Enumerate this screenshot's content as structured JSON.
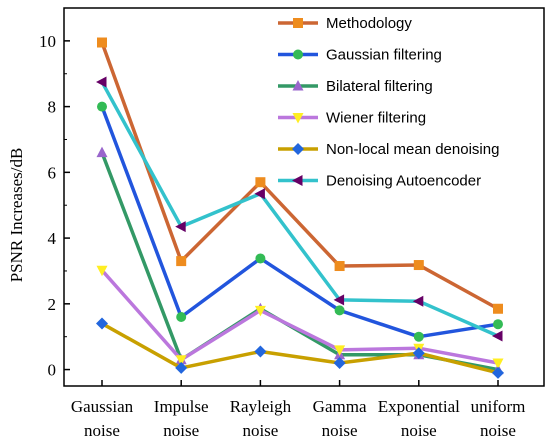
{
  "chart_data": {
    "type": "line",
    "title": "",
    "ylabel": "PSNR Increases/dB",
    "xlabel": "",
    "ylim": [
      -0.5,
      11
    ],
    "yticks": [
      0,
      2,
      4,
      6,
      8,
      10
    ],
    "grid": false,
    "legend_position": "top-right",
    "categories": [
      [
        "Gaussian",
        "noise"
      ],
      [
        "Impulse",
        "noise"
      ],
      [
        "Rayleigh",
        "noise"
      ],
      [
        "Gamma",
        "noise"
      ],
      [
        "Exponential",
        "noise"
      ],
      [
        "uniform",
        "noise"
      ]
    ],
    "series": [
      {
        "name": "Methodology",
        "color": "#cc6633",
        "marker_color": "#ee8c1e",
        "marker": "square",
        "values": [
          9.95,
          3.3,
          5.7,
          3.15,
          3.18,
          1.85
        ]
      },
      {
        "name": "Gaussian filtering",
        "color": "#2255dd",
        "marker_color": "#33bb55",
        "marker": "circle",
        "values": [
          8.0,
          1.6,
          3.38,
          1.8,
          1.0,
          1.38
        ]
      },
      {
        "name": "Bilateral filtering",
        "color": "#339966",
        "marker_color": "#9966cc",
        "marker": "triangle-up",
        "values": [
          6.6,
          0.3,
          1.85,
          0.45,
          0.45,
          0.0
        ]
      },
      {
        "name": "Wiener filtering",
        "color": "#bb77dd",
        "marker_color": "#ffee22",
        "marker": "triangle-down",
        "values": [
          3.02,
          0.3,
          1.8,
          0.6,
          0.65,
          0.2
        ]
      },
      {
        "name": "Non-local mean denoising",
        "color": "#c8a000",
        "marker_color": "#2266dd",
        "marker": "diamond",
        "values": [
          1.4,
          0.05,
          0.55,
          0.2,
          0.5,
          -0.1
        ]
      },
      {
        "name": "Denoising Autoencoder",
        "color": "#33c2cc",
        "marker_color": "#660066",
        "marker": "triangle-left",
        "values": [
          8.75,
          4.35,
          5.35,
          2.12,
          2.08,
          1.02
        ]
      }
    ]
  }
}
